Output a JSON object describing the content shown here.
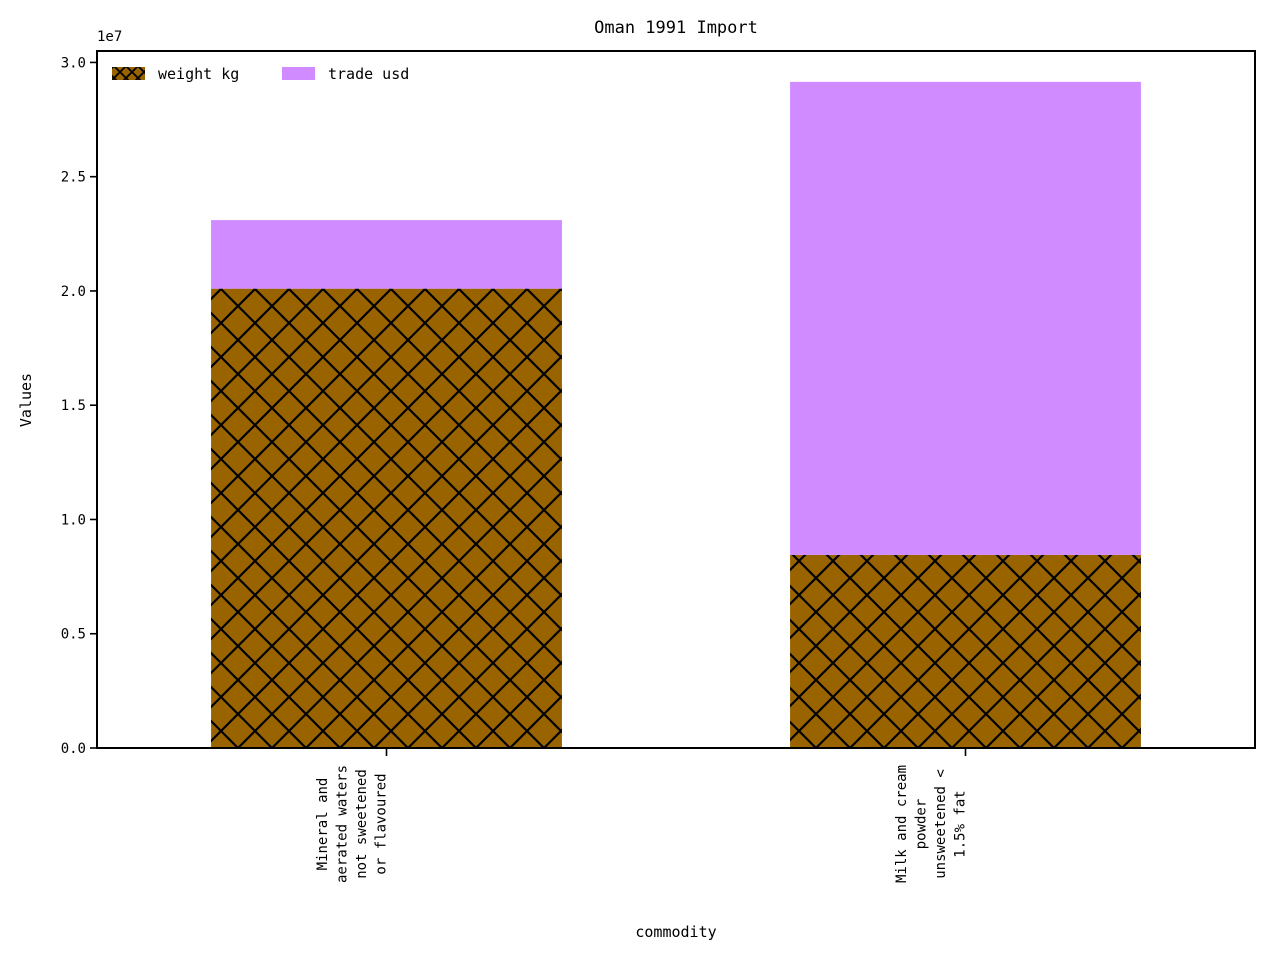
{
  "chart_data": {
    "type": "bar",
    "stacked": true,
    "title": "Oman 1991 Import",
    "xlabel": "commodity",
    "ylabel": "Values",
    "y_offset_label": "1e7",
    "ylim": [
      0,
      3.05
    ],
    "y_ticks": [
      "0.0",
      "0.5",
      "1.0",
      "1.5",
      "2.0",
      "2.5",
      "3.0"
    ],
    "categories": [
      "Mineral and\naerated waters\nnot sweetened\nor flavoured",
      "Milk and cream\npowder\nunsweetened <\n1.5% fat"
    ],
    "series": [
      {
        "name": "weight kg",
        "values": [
          2.01,
          0.845
        ],
        "color": "#996300",
        "hatch": "crosshatch"
      },
      {
        "name": "trade usd",
        "values": [
          0.3,
          2.07
        ],
        "color": "#cf8bff",
        "hatch": "none"
      }
    ],
    "legend_position": "top-left",
    "grid": false
  }
}
